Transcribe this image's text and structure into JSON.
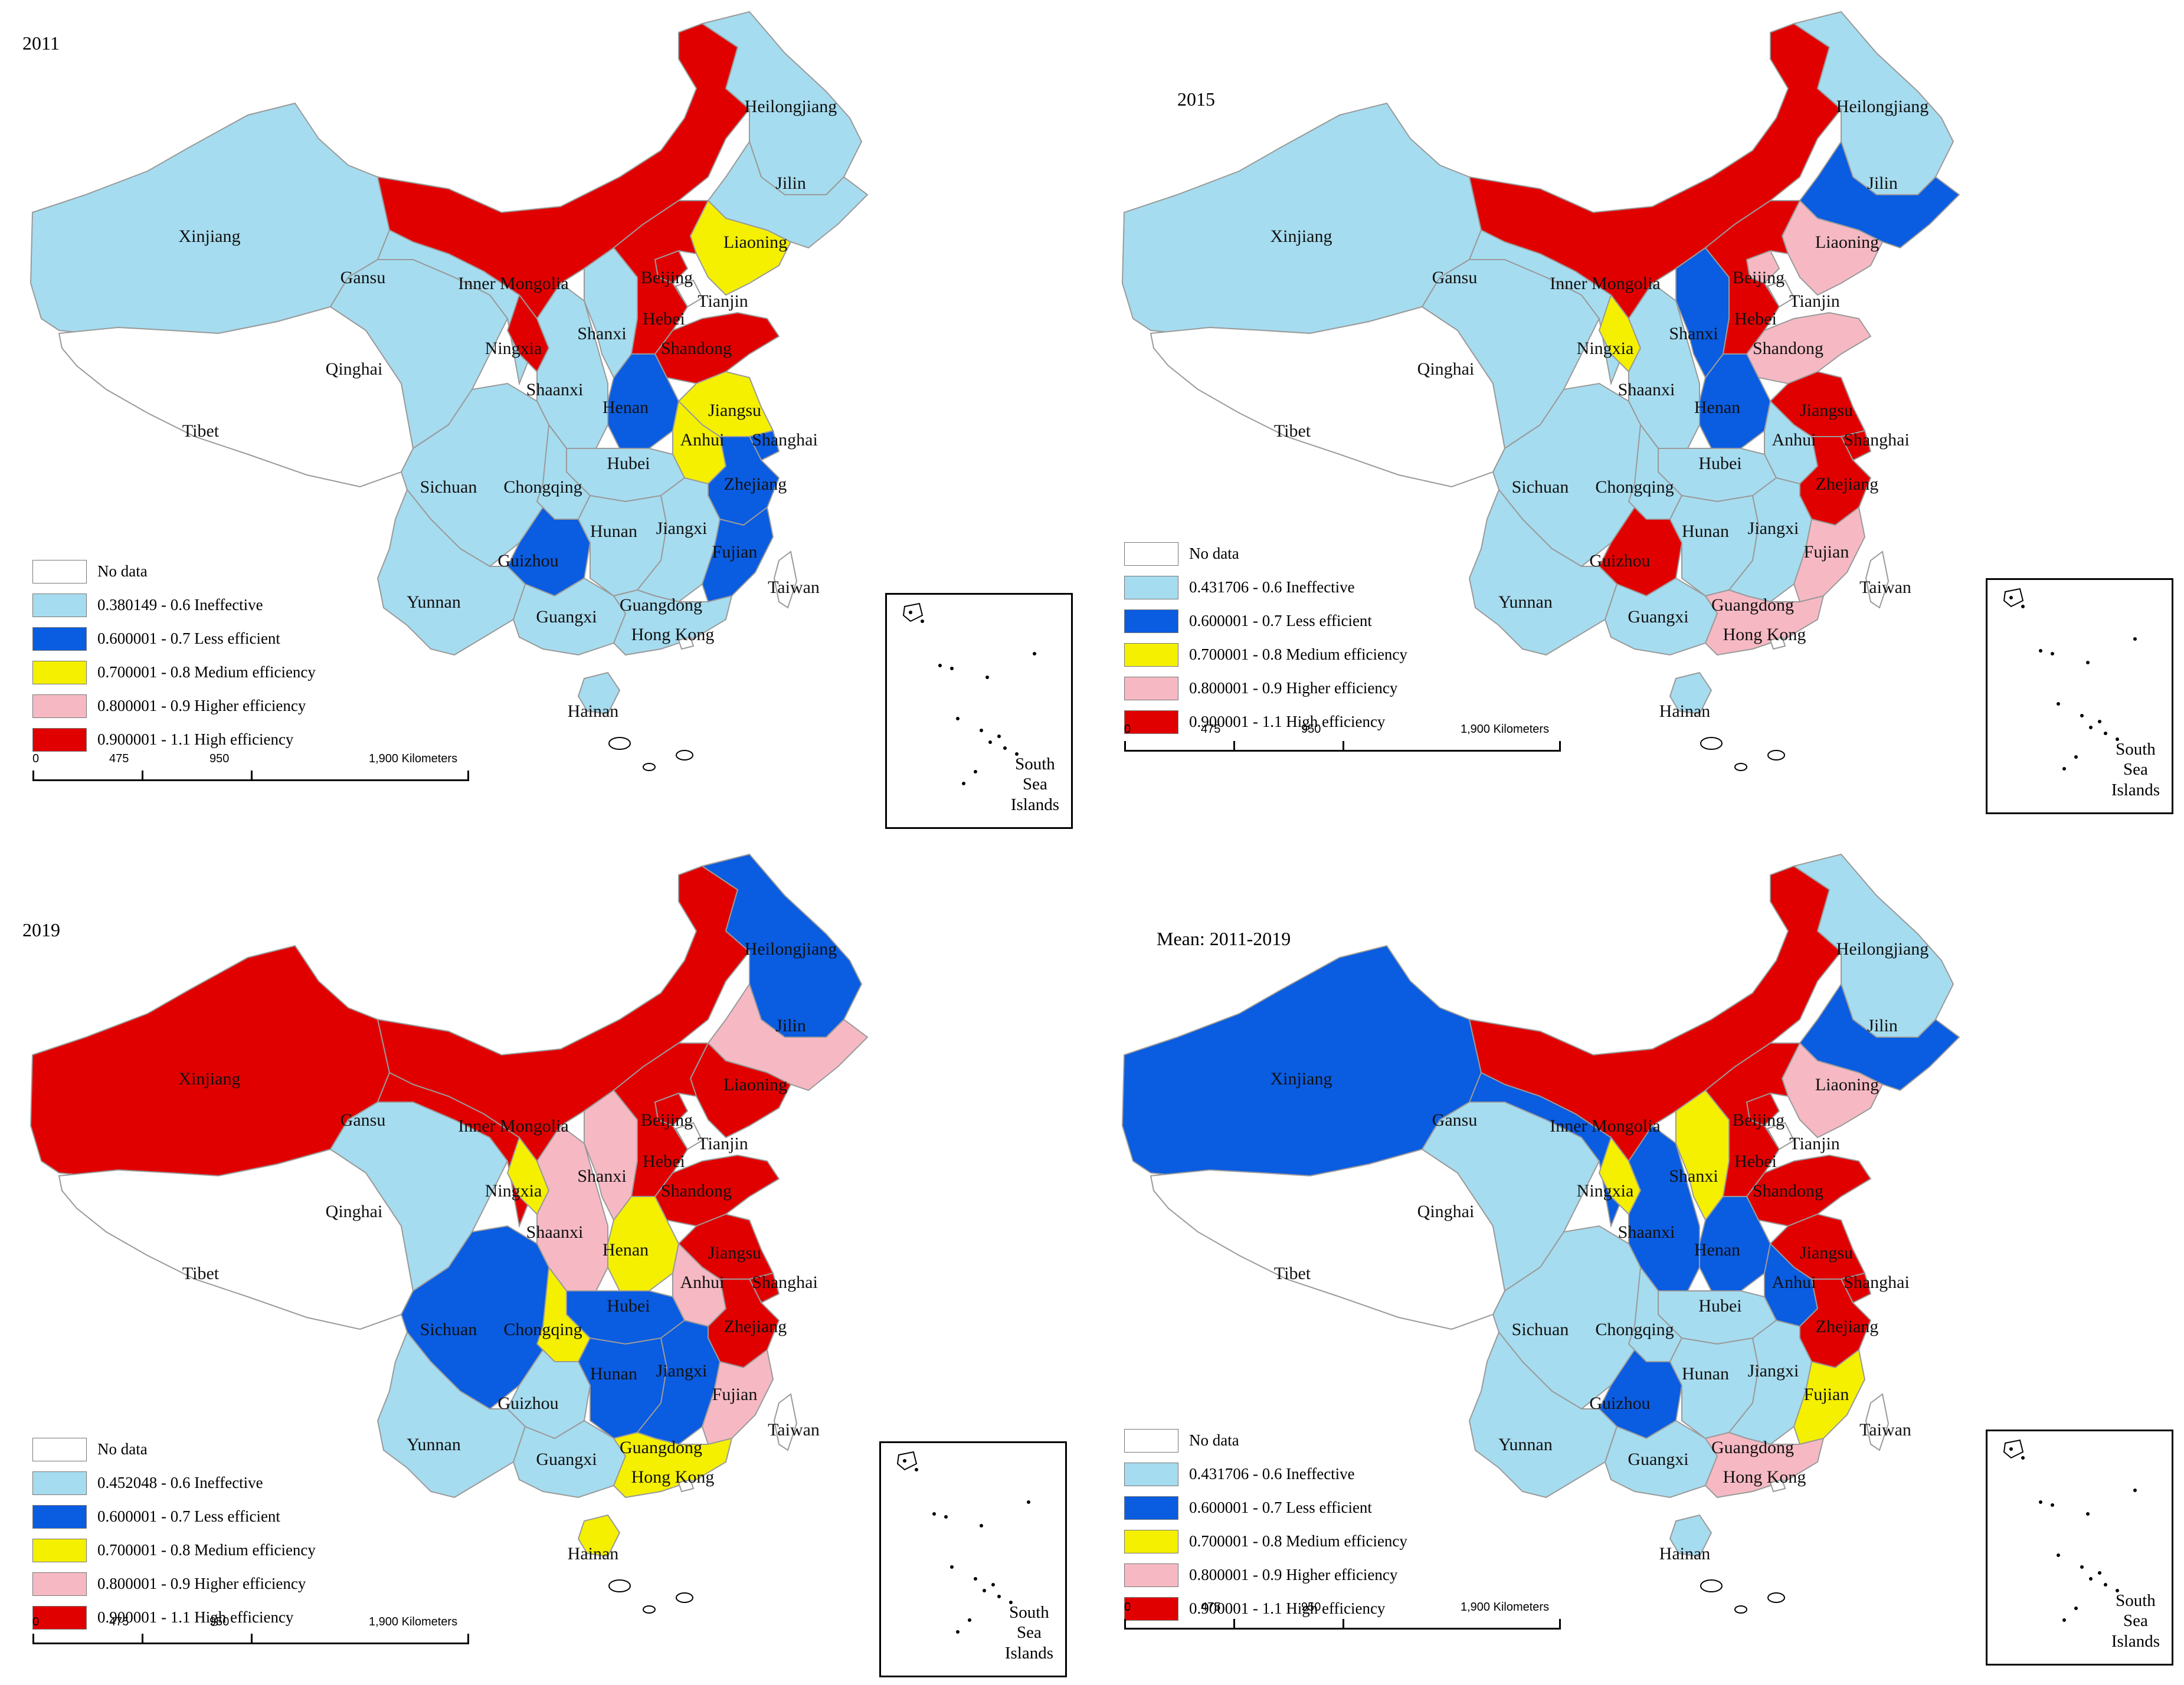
{
  "colors": {
    "ineffective": "#a6dcef",
    "less_efficient": "#0a5ce0",
    "medium": "#f4f000",
    "higher": "#f6b9c3",
    "high": "#e10000",
    "nodata": "#ffffff"
  },
  "scale": {
    "ticks": [
      "0",
      "475",
      "950",
      "1,900 Kilometers"
    ]
  },
  "inset": {
    "label_lines": [
      "South",
      "Sea",
      "Islands"
    ]
  },
  "panels": [
    {
      "title": "2011",
      "legend": [
        {
          "label": "No data",
          "color_key": "nodata"
        },
        {
          "label": "0.380149 - 0.6 Ineffective",
          "color_key": "ineffective"
        },
        {
          "label": "0.600001 - 0.7 Less efficient",
          "color_key": "less_efficient"
        },
        {
          "label": "0.700001 - 0.8 Medium efficiency",
          "color_key": "medium"
        },
        {
          "label": "0.800001 - 0.9 Higher efficiency",
          "color_key": "higher"
        },
        {
          "label": "0.900001 - 1.1 High efficiency",
          "color_key": "high"
        }
      ],
      "regions": {
        "Heilongjiang": "ineffective",
        "Jilin": "ineffective",
        "Liaoning": "medium",
        "Inner Mongolia": "high",
        "Xinjiang": "ineffective",
        "Gansu": "ineffective",
        "Qinghai": "ineffective",
        "Tibet": "nodata",
        "Ningxia": "high",
        "Shaanxi": "ineffective",
        "Shanxi": "ineffective",
        "Beijing": "high",
        "Tianjin": "nodata",
        "Hebei": "high",
        "Shandong": "high",
        "Henan": "less_efficient",
        "Jiangsu": "medium",
        "Anhui": "medium",
        "Shanghai": "less_efficient",
        "Hubei": "ineffective",
        "Sichuan": "ineffective",
        "Chongqing": "ineffective",
        "Guizhou": "less_efficient",
        "Hunan": "ineffective",
        "Jiangxi": "ineffective",
        "Zhejiang": "less_efficient",
        "Fujian": "less_efficient",
        "Yunnan": "ineffective",
        "Guangxi": "ineffective",
        "Guangdong": "ineffective",
        "Hong Kong": "nodata",
        "Taiwan": "nodata",
        "Hainan": "ineffective"
      }
    },
    {
      "title": "2015",
      "legend": [
        {
          "label": "No data",
          "color_key": "nodata"
        },
        {
          "label": "0.431706 - 0.6 Ineffective",
          "color_key": "ineffective"
        },
        {
          "label": "0.600001 - 0.7 Less efficient",
          "color_key": "less_efficient"
        },
        {
          "label": "0.700001 - 0.8 Medium efficiency",
          "color_key": "medium"
        },
        {
          "label": "0.800001 - 0.9 Higher efficiency",
          "color_key": "higher"
        },
        {
          "label": "0.900001 - 1.1 High efficiency",
          "color_key": "high"
        }
      ],
      "regions": {
        "Heilongjiang": "ineffective",
        "Jilin": "less_efficient",
        "Liaoning": "higher",
        "Inner Mongolia": "high",
        "Xinjiang": "ineffective",
        "Gansu": "ineffective",
        "Qinghai": "ineffective",
        "Tibet": "nodata",
        "Ningxia": "medium",
        "Shaanxi": "ineffective",
        "Shanxi": "less_efficient",
        "Beijing": "higher",
        "Tianjin": "nodata",
        "Hebei": "high",
        "Shandong": "higher",
        "Henan": "less_efficient",
        "Jiangsu": "high",
        "Anhui": "ineffective",
        "Shanghai": "high",
        "Hubei": "ineffective",
        "Sichuan": "ineffective",
        "Chongqing": "ineffective",
        "Guizhou": "high",
        "Hunan": "ineffective",
        "Jiangxi": "ineffective",
        "Zhejiang": "high",
        "Fujian": "higher",
        "Yunnan": "ineffective",
        "Guangxi": "ineffective",
        "Guangdong": "higher",
        "Hong Kong": "nodata",
        "Taiwan": "nodata",
        "Hainan": "ineffective"
      }
    },
    {
      "title": "2019",
      "legend": [
        {
          "label": "No data",
          "color_key": "nodata"
        },
        {
          "label": "0.452048 - 0.6 Ineffective",
          "color_key": "ineffective"
        },
        {
          "label": "0.600001 - 0.7 Less efficient",
          "color_key": "less_efficient"
        },
        {
          "label": "0.700001 - 0.8 Medium efficiency",
          "color_key": "medium"
        },
        {
          "label": "0.800001 - 0.9 Higher efficiency",
          "color_key": "higher"
        },
        {
          "label": "0.900001 - 1.1 High efficiency",
          "color_key": "high"
        }
      ],
      "regions": {
        "Heilongjiang": "less_efficient",
        "Jilin": "higher",
        "Liaoning": "high",
        "Inner Mongolia": "high",
        "Xinjiang": "high",
        "Gansu": "high",
        "Qinghai": "ineffective",
        "Tibet": "nodata",
        "Ningxia": "medium",
        "Shaanxi": "higher",
        "Shanxi": "higher",
        "Beijing": "high",
        "Tianjin": "nodata",
        "Hebei": "high",
        "Shandong": "high",
        "Henan": "medium",
        "Jiangsu": "high",
        "Anhui": "higher",
        "Shanghai": "high",
        "Hubei": "less_efficient",
        "Sichuan": "less_efficient",
        "Chongqing": "medium",
        "Guizhou": "ineffective",
        "Hunan": "less_efficient",
        "Jiangxi": "less_efficient",
        "Zhejiang": "high",
        "Fujian": "higher",
        "Yunnan": "ineffective",
        "Guangxi": "ineffective",
        "Guangdong": "medium",
        "Hong Kong": "nodata",
        "Taiwan": "nodata",
        "Hainan": "medium"
      }
    },
    {
      "title": "Mean: 2011-2019",
      "legend": [
        {
          "label": "No data",
          "color_key": "nodata"
        },
        {
          "label": "0.431706 - 0.6 Ineffective",
          "color_key": "ineffective"
        },
        {
          "label": "0.600001 - 0.7 Less efficient",
          "color_key": "less_efficient"
        },
        {
          "label": "0.700001 - 0.8 Medium efficiency",
          "color_key": "medium"
        },
        {
          "label": "0.800001 - 0.9 Higher efficiency",
          "color_key": "higher"
        },
        {
          "label": "0.900001 - 1.1 High efficiency",
          "color_key": "high"
        }
      ],
      "regions": {
        "Heilongjiang": "ineffective",
        "Jilin": "less_efficient",
        "Liaoning": "higher",
        "Inner Mongolia": "high",
        "Xinjiang": "less_efficient",
        "Gansu": "less_efficient",
        "Qinghai": "ineffective",
        "Tibet": "nodata",
        "Ningxia": "medium",
        "Shaanxi": "less_efficient",
        "Shanxi": "medium",
        "Beijing": "high",
        "Tianjin": "nodata",
        "Hebei": "high",
        "Shandong": "high",
        "Henan": "less_efficient",
        "Jiangsu": "high",
        "Anhui": "less_efficient",
        "Shanghai": "high",
        "Hubei": "ineffective",
        "Sichuan": "ineffective",
        "Chongqing": "ineffective",
        "Guizhou": "less_efficient",
        "Hunan": "ineffective",
        "Jiangxi": "ineffective",
        "Zhejiang": "high",
        "Fujian": "medium",
        "Yunnan": "ineffective",
        "Guangxi": "ineffective",
        "Guangdong": "higher",
        "Hong Kong": "nodata",
        "Taiwan": "nodata",
        "Hainan": "ineffective"
      }
    }
  ]
}
